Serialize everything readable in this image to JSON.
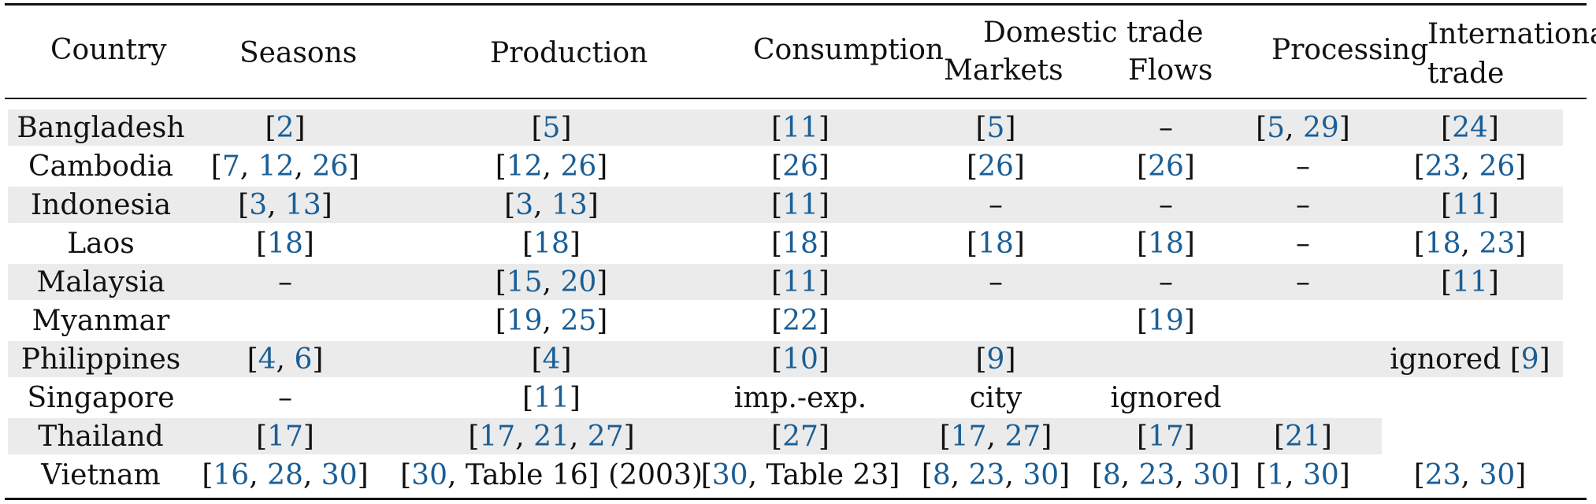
{
  "header": {
    "country": "Country",
    "seasons": "Seasons",
    "production": "Production",
    "consumption": "Consumption",
    "domestic_trade": "Domestic trade",
    "markets": "Markets",
    "flows": "Flows",
    "processing": "Processing",
    "international_line1": "International",
    "international_line2": "trade"
  },
  "rows": [
    {
      "country": "Bangladesh",
      "shaded_to": "full",
      "cells": [
        [
          "[",
          {
            "r": "2"
          },
          "]"
        ],
        [
          "[",
          {
            "r": "5"
          },
          "]"
        ],
        [
          "[",
          {
            "r": "11"
          },
          "]"
        ],
        [
          "[",
          {
            "r": "5"
          },
          "]"
        ],
        [
          "–"
        ],
        [
          "[",
          {
            "r": "5"
          },
          ", ",
          {
            "r": "29"
          },
          "]"
        ],
        [
          "[",
          {
            "r": "24"
          },
          "]"
        ]
      ]
    },
    {
      "country": "Cambodia",
      "shaded_to": "none",
      "cells": [
        [
          "[",
          {
            "r": "7"
          },
          ", ",
          {
            "r": "12"
          },
          ", ",
          {
            "r": "26"
          },
          "]"
        ],
        [
          "[",
          {
            "r": "12"
          },
          ", ",
          {
            "r": "26"
          },
          "]"
        ],
        [
          "[",
          {
            "r": "26"
          },
          "]"
        ],
        [
          "[",
          {
            "r": "26"
          },
          "]"
        ],
        [
          "[",
          {
            "r": "26"
          },
          "]"
        ],
        [
          "–"
        ],
        [
          "[",
          {
            "r": "23"
          },
          ", ",
          {
            "r": "26"
          },
          "]"
        ]
      ]
    },
    {
      "country": "Indonesia",
      "shaded_to": "full",
      "cells": [
        [
          "[",
          {
            "r": "3"
          },
          ", ",
          {
            "r": "13"
          },
          "]"
        ],
        [
          "[",
          {
            "r": "3"
          },
          ", ",
          {
            "r": "13"
          },
          "]"
        ],
        [
          "[",
          {
            "r": "11"
          },
          "]"
        ],
        [
          "–"
        ],
        [
          "–"
        ],
        [
          "–"
        ],
        [
          "[",
          {
            "r": "11"
          },
          "]"
        ]
      ]
    },
    {
      "country": "Laos",
      "shaded_to": "none",
      "cells": [
        [
          "[",
          {
            "r": "18"
          },
          "]"
        ],
        [
          "[",
          {
            "r": "18"
          },
          "]"
        ],
        [
          "[",
          {
            "r": "18"
          },
          "]"
        ],
        [
          "[",
          {
            "r": "18"
          },
          "]"
        ],
        [
          "[",
          {
            "r": "18"
          },
          "]"
        ],
        [
          "–"
        ],
        [
          "[",
          {
            "r": "18"
          },
          ", ",
          {
            "r": "23"
          },
          "]"
        ]
      ]
    },
    {
      "country": "Malaysia",
      "shaded_to": "full",
      "cells": [
        [
          "–"
        ],
        [
          "[",
          {
            "r": "15"
          },
          ", ",
          {
            "r": "20"
          },
          "]"
        ],
        [
          "[",
          {
            "r": "11"
          },
          "]"
        ],
        [
          "–"
        ],
        [
          "–"
        ],
        [
          "–"
        ],
        [
          "[",
          {
            "r": "11"
          },
          "]"
        ]
      ]
    },
    {
      "country": "Myanmar",
      "shaded_to": "none",
      "cells": [
        [],
        [
          "[",
          {
            "r": "19"
          },
          ", ",
          {
            "r": "25"
          },
          "]"
        ],
        [
          "[",
          {
            "r": "22"
          },
          "]"
        ],
        [],
        [
          "[",
          {
            "r": "19"
          },
          "]"
        ],
        [],
        []
      ]
    },
    {
      "country": "Philippines",
      "shaded_to": "full",
      "cells": [
        [
          "[",
          {
            "r": "4"
          },
          ", ",
          {
            "r": "6"
          },
          "]"
        ],
        [
          "[",
          {
            "r": "4"
          },
          "]"
        ],
        [
          "[",
          {
            "r": "10"
          },
          "]"
        ],
        [
          "[",
          {
            "r": "9"
          },
          "]"
        ],
        [],
        [],
        [
          "ignored [",
          {
            "r": "9"
          },
          "]"
        ]
      ]
    },
    {
      "country": "Singapore",
      "shaded_to": "none",
      "cells": [
        [
          "–"
        ],
        [
          "[",
          {
            "r": "11"
          },
          "]"
        ],
        [
          "imp.-exp."
        ],
        [
          "city"
        ],
        [
          "ignored"
        ],
        [],
        []
      ]
    },
    {
      "country": "Thailand",
      "shaded_to": "partial",
      "cells": [
        [
          "[",
          {
            "r": "17"
          },
          "]"
        ],
        [
          "[",
          {
            "r": "17"
          },
          ", ",
          {
            "r": "21"
          },
          ", ",
          {
            "r": "27"
          },
          "]"
        ],
        [
          "[",
          {
            "r": "27"
          },
          "]"
        ],
        [
          "[",
          {
            "r": "17"
          },
          ", ",
          {
            "r": "27"
          },
          "]"
        ],
        [
          "[",
          {
            "r": "17"
          },
          "]"
        ],
        [
          "[",
          {
            "r": "21"
          },
          "]"
        ],
        []
      ]
    },
    {
      "country": "Vietnam",
      "shaded_to": "none",
      "cells": [
        [
          "[",
          {
            "r": "16"
          },
          ", ",
          {
            "r": "28"
          },
          ", ",
          {
            "r": "30"
          },
          "]"
        ],
        [
          "[",
          {
            "r": "30"
          },
          ", Table 16] (2003)"
        ],
        [
          "[",
          {
            "r": "30"
          },
          ", Table 23]"
        ],
        [
          "[",
          {
            "r": "8"
          },
          ", ",
          {
            "r": "23"
          },
          ", ",
          {
            "r": "30"
          },
          "]"
        ],
        [
          "[",
          {
            "r": "8"
          },
          ", ",
          {
            "r": "23"
          },
          ", ",
          {
            "r": "30"
          },
          "]"
        ],
        [
          "[",
          {
            "r": "1"
          },
          ", ",
          {
            "r": "30"
          },
          "]"
        ],
        [
          "[",
          {
            "r": "23"
          },
          ", ",
          {
            "r": "30"
          },
          "]"
        ]
      ]
    }
  ]
}
